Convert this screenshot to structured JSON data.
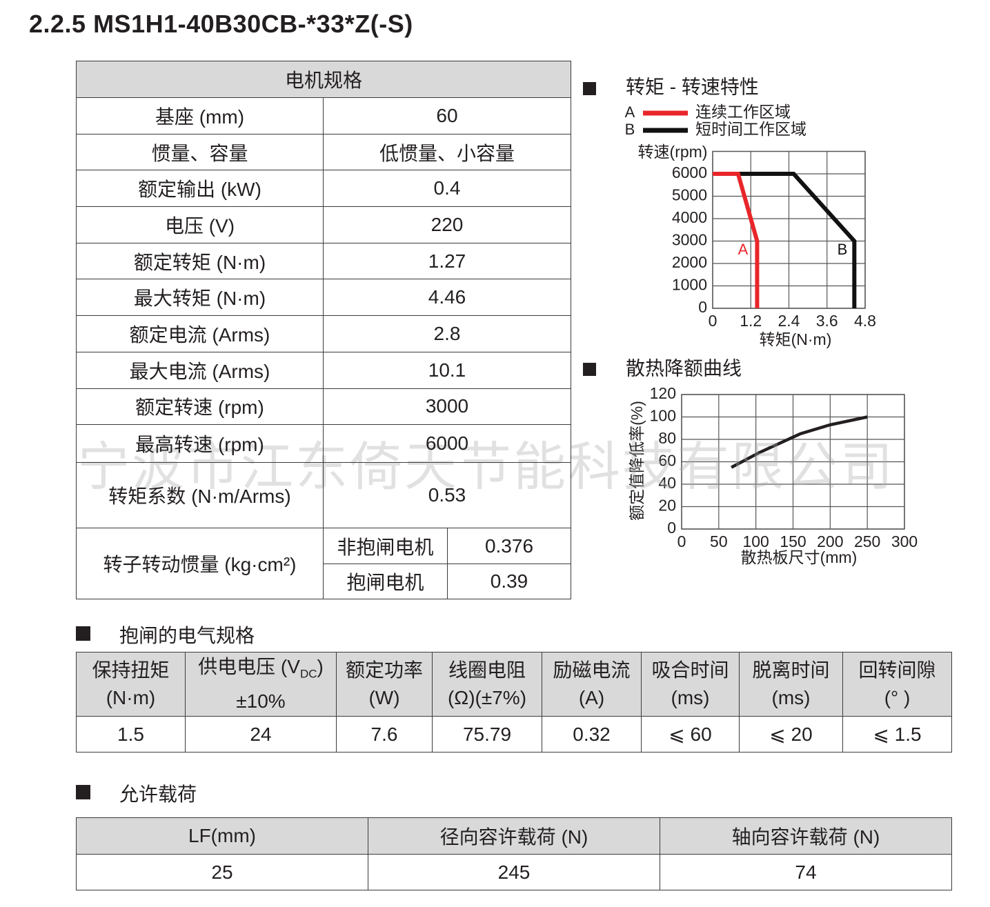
{
  "title": "2.2.5 MS1H1-40B30CB-*33*Z(-S)",
  "watermark": "宁波市江东倚天节能科技有限公司",
  "spec_table": {
    "header": "电机规格",
    "rows": [
      {
        "label": "基座 (mm)",
        "value": 60
      },
      {
        "label": "惯量、容量",
        "value": "低惯量、小容量"
      },
      {
        "label": "额定输出 (kW)",
        "value": 0.4
      },
      {
        "label": "电压 (V)",
        "value": 220
      },
      {
        "label": "额定转矩 (N·m)",
        "value": 1.27
      },
      {
        "label": "最大转矩 (N·m)",
        "value": 4.46
      },
      {
        "label": "额定电流 (Arms)",
        "value": 2.8
      },
      {
        "label": "最大电流 (Arms)",
        "value": 10.1
      },
      {
        "label": "额定转速 (rpm)",
        "value": 3000
      },
      {
        "label": "最高转速 (rpm)",
        "value": 6000
      },
      {
        "label": "转矩系数 (N·m/Arms)",
        "value": 0.53
      }
    ],
    "inertia": {
      "label": "转子转动惯量 (kg·cm²)",
      "items": [
        {
          "label": "非抱闸电机",
          "value": 0.376
        },
        {
          "label": "抱闸电机",
          "value": 0.39
        }
      ]
    }
  },
  "chart_data": [
    {
      "type": "line",
      "title": "转矩 - 转速特性",
      "x_label": "转矩(N·m)",
      "y_label": "转速(rpm)",
      "xlim": [
        0,
        4.8
      ],
      "ylim": [
        0,
        7000
      ],
      "xticks": [
        0,
        1.2,
        2.4,
        3.6,
        4.8
      ],
      "yticks": [
        0,
        1000,
        2000,
        3000,
        4000,
        5000,
        6000
      ],
      "grid": true,
      "series": [
        {
          "letter": "B",
          "name": "短时间工作区域",
          "color": "#111111",
          "x": [
            0,
            2.55,
            4.46,
            4.46
          ],
          "values": [
            6000,
            6000,
            3000,
            0
          ]
        },
        {
          "letter": "A",
          "name": "连续工作区域",
          "color": "#e8262a",
          "x": [
            0,
            0.8,
            1.4,
            1.4
          ],
          "values": [
            6000,
            6000,
            3000,
            0
          ]
        }
      ]
    },
    {
      "type": "line",
      "title": "散热降额曲线",
      "x_label": "散热板尺寸(mm)",
      "y_label": "额定值降低率(%)",
      "xlim": [
        0,
        300
      ],
      "ylim": [
        0,
        120
      ],
      "xticks": [
        0,
        50,
        100,
        150,
        200,
        250,
        300
      ],
      "yticks": [
        0,
        20,
        40,
        60,
        80,
        100,
        120
      ],
      "grid": true,
      "series": [
        {
          "color": "#231f20",
          "x": [
            67,
            104,
            160,
            200,
            250
          ],
          "values": [
            55,
            68,
            85,
            93,
            100
          ]
        }
      ]
    }
  ],
  "brake_table": {
    "heading": "抱闸的电气规格",
    "columns": [
      {
        "line1": "保持扭矩",
        "line2": "(N·m)"
      },
      {
        "line1": "供电电压 (V",
        "line1_sub": "DC",
        "line1_end": ")",
        "line2": "±10%"
      },
      {
        "line1": "额定功率",
        "line2": "(W)"
      },
      {
        "line1": "线圈电阻",
        "line2": "(Ω)(±7%)"
      },
      {
        "line1": "励磁电流",
        "line2": "(A)"
      },
      {
        "line1": "吸合时间",
        "line2": "(ms)"
      },
      {
        "line1": "脱离时间",
        "line2": "(ms)"
      },
      {
        "line1": "回转间隙",
        "line2": "(° )"
      }
    ],
    "values": [
      1.5,
      24,
      7.6,
      75.79,
      0.32,
      "⩽ 60",
      "⩽ 20",
      "⩽ 1.5"
    ]
  },
  "load_table": {
    "heading": "允许载荷",
    "columns": [
      "LF(mm)",
      "径向容许载荷 (N)",
      "轴向容许载荷 (N)"
    ],
    "values": [
      25,
      245,
      74
    ]
  }
}
